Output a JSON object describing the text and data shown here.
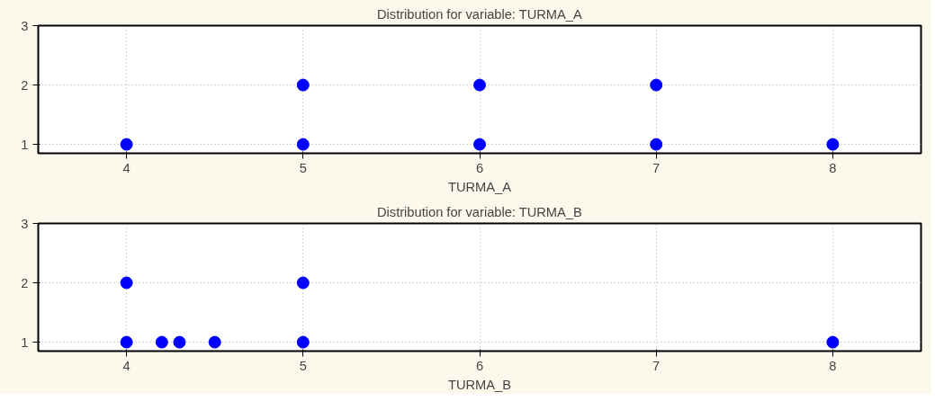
{
  "chart_data": [
    {
      "type": "scatter",
      "title": "Distribution for variable: TURMA_A",
      "xlabel": "TURMA_A",
      "xlim": [
        3.5,
        8.5
      ],
      "xticks": [
        4,
        5,
        6,
        7,
        8
      ],
      "ylim": [
        0.85,
        3
      ],
      "yticks": [
        1,
        2,
        3
      ],
      "grid": true,
      "marker": "circle",
      "series": [
        {
          "color": "#0000ff",
          "x": [
            4,
            5,
            5,
            6,
            6,
            7,
            7,
            8
          ],
          "values": [
            1,
            1,
            2,
            1,
            2,
            1,
            2,
            1
          ]
        }
      ]
    },
    {
      "type": "scatter",
      "title": "Distribution for variable: TURMA_B",
      "xlabel": "TURMA_B",
      "xlim": [
        3.5,
        8.5
      ],
      "xticks": [
        4,
        5,
        6,
        7,
        8
      ],
      "ylim": [
        0.85,
        3
      ],
      "yticks": [
        1,
        2,
        3
      ],
      "grid": true,
      "marker": "circle",
      "series": [
        {
          "color": "#0000ff",
          "x": [
            4,
            4,
            4.2,
            4.3,
            4.5,
            5,
            5,
            8
          ],
          "values": [
            1,
            2,
            1,
            1,
            1,
            1,
            2,
            1
          ]
        }
      ]
    }
  ]
}
